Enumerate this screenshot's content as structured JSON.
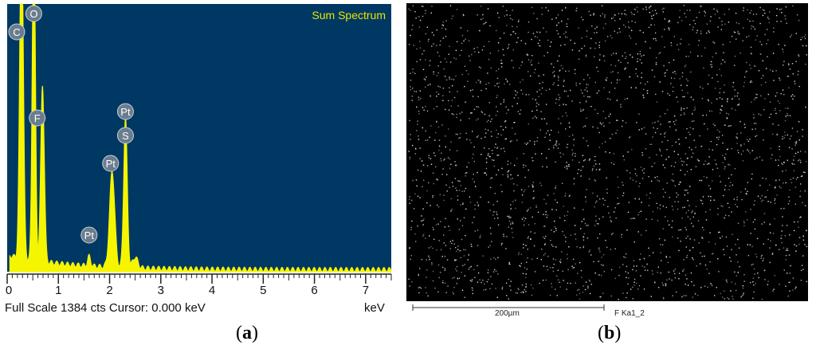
{
  "panel_a": {
    "chart_data": {
      "type": "line",
      "title": "Sum Spectrum",
      "xlabel": "keV",
      "xlim": [
        0,
        7.5
      ],
      "ylim": [
        0,
        1
      ],
      "x_ticks": [
        0,
        1,
        2,
        3,
        4,
        5,
        6,
        7
      ],
      "grid": false,
      "peaks": [
        {
          "label": "C",
          "x": 0.28,
          "y": 1.0
        },
        {
          "label": "O",
          "x": 0.52,
          "y": 1.0
        },
        {
          "label": "F",
          "x": 0.68,
          "y": 0.71
        },
        {
          "label": "Pt",
          "x": 1.6,
          "y": 0.04
        },
        {
          "label": "Pt",
          "x": 2.05,
          "y": 0.38
        },
        {
          "label": "S",
          "x": 2.31,
          "y": 0.58
        },
        {
          "label": "Pt",
          "x": 2.31,
          "y": 0.58
        }
      ],
      "colors": {
        "background": "#003864",
        "trace": "#f5f500",
        "title": "#e6e600",
        "marker": "#6a7d8e"
      }
    },
    "status_left": "Full Scale 1384 cts  Cursor: 0.000 keV",
    "status_unit": "keV",
    "caption_letter": "a"
  },
  "panel_b": {
    "scale_label": "200µm",
    "map_label": "F Ka1_2",
    "caption_letter": "b",
    "colors": {
      "background": "#000000",
      "dots": "#e8e8e8"
    }
  }
}
